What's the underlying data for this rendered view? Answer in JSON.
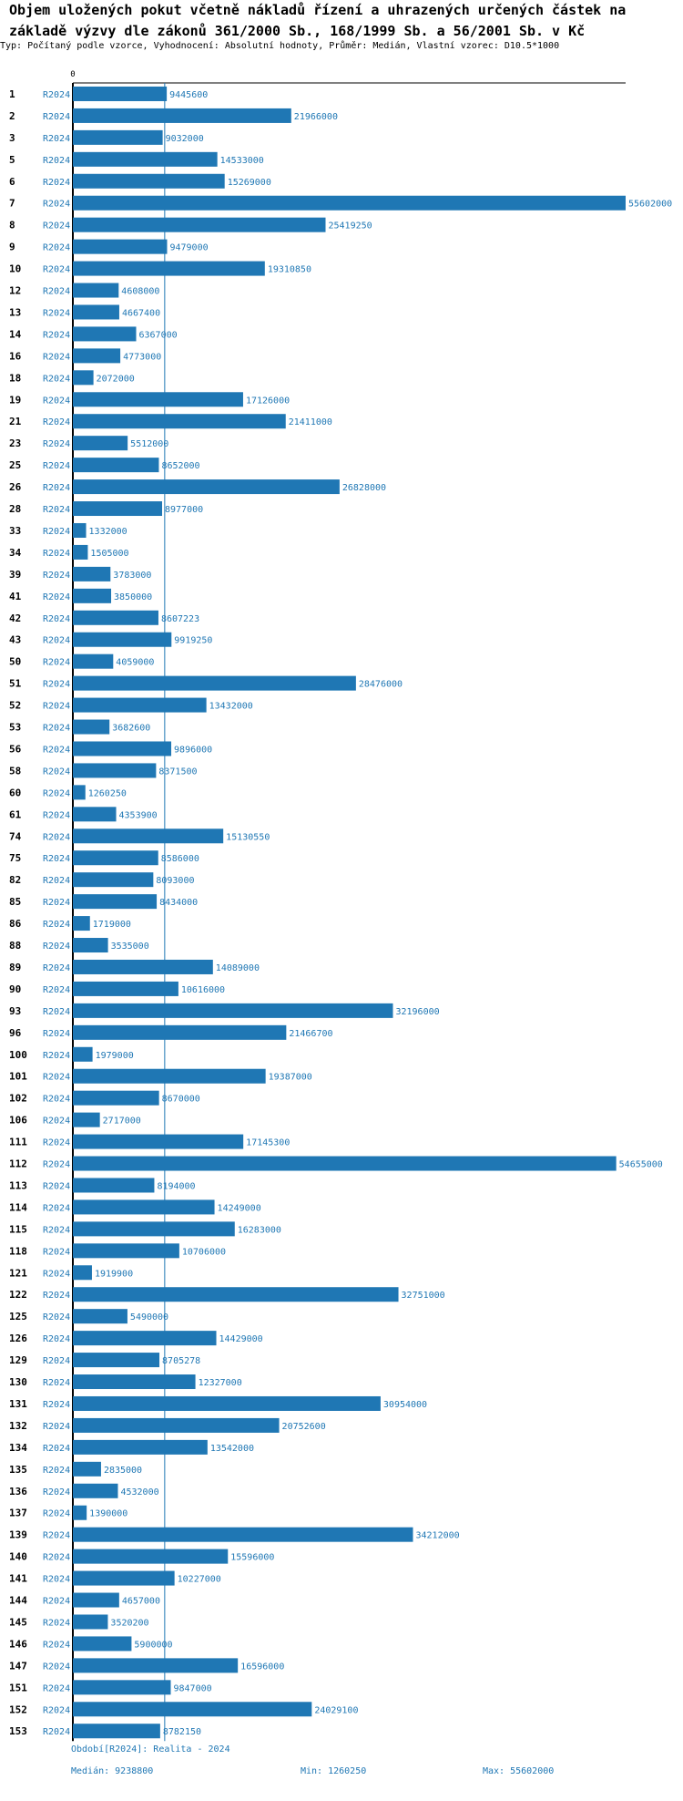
{
  "chart_data": {
    "type": "bar",
    "orientation": "horizontal",
    "title": "Objem uložených pokut včetně nákladů řízení a uhrazených určených částek na základě výzvy dle zákonů 361/2000 Sb., 168/1999 Sb. a 56/2001 Sb. v Kč",
    "subtitle": "Typ: Počítaný podle vzorce, Vyhodnocení: Absolutní hodnoty, Průměr: Medián, Vlastní vzorec: D10.5*1000",
    "x_tick_label": "0",
    "xlim": [
      0,
      55602000
    ],
    "series_label": "R2024",
    "bar_color": "#1f77b4",
    "median_line": 9238800,
    "categories": [
      "1",
      "2",
      "3",
      "5",
      "6",
      "7",
      "8",
      "9",
      "10",
      "12",
      "13",
      "14",
      "16",
      "18",
      "19",
      "21",
      "23",
      "25",
      "26",
      "28",
      "33",
      "34",
      "39",
      "41",
      "42",
      "43",
      "50",
      "51",
      "52",
      "53",
      "56",
      "58",
      "60",
      "61",
      "74",
      "75",
      "82",
      "85",
      "86",
      "88",
      "89",
      "90",
      "93",
      "96",
      "100",
      "101",
      "102",
      "106",
      "111",
      "112",
      "113",
      "114",
      "115",
      "118",
      "121",
      "122",
      "125",
      "126",
      "129",
      "130",
      "131",
      "132",
      "134",
      "135",
      "136",
      "137",
      "139",
      "140",
      "141",
      "144",
      "145",
      "146",
      "147",
      "151",
      "152",
      "153"
    ],
    "values": [
      9445600,
      21966000,
      9032000,
      14533000,
      15269000,
      55602000,
      25419250,
      9479000,
      19310850,
      4608000,
      4667400,
      6367000,
      4773000,
      2072000,
      17126000,
      21411000,
      5512000,
      8652000,
      26828000,
      8977000,
      1332000,
      1505000,
      3783000,
      3850000,
      8607223,
      9919250,
      4059000,
      28476000,
      13432000,
      3682600,
      9896000,
      8371500,
      1260250,
      4353900,
      15130550,
      8586000,
      8093000,
      8434000,
      1719000,
      3535000,
      14089000,
      10616000,
      32196000,
      21466700,
      1979000,
      19387000,
      8670000,
      2717000,
      17145300,
      54655000,
      8194000,
      14249000,
      16283000,
      10706000,
      1919900,
      32751000,
      5490000,
      14429000,
      8705278,
      12327000,
      30954000,
      20752600,
      13542000,
      2835000,
      4532000,
      1390000,
      34212000,
      15596000,
      10227000,
      4657000,
      3520200,
      5900000,
      16596000,
      9847000,
      24029100,
      8782150
    ]
  },
  "footer": {
    "period": "Období[R2024]: Realita - 2024",
    "median": "Medián: 9238800",
    "min": "Min: 1260250",
    "max": "Max: 55602000"
  }
}
